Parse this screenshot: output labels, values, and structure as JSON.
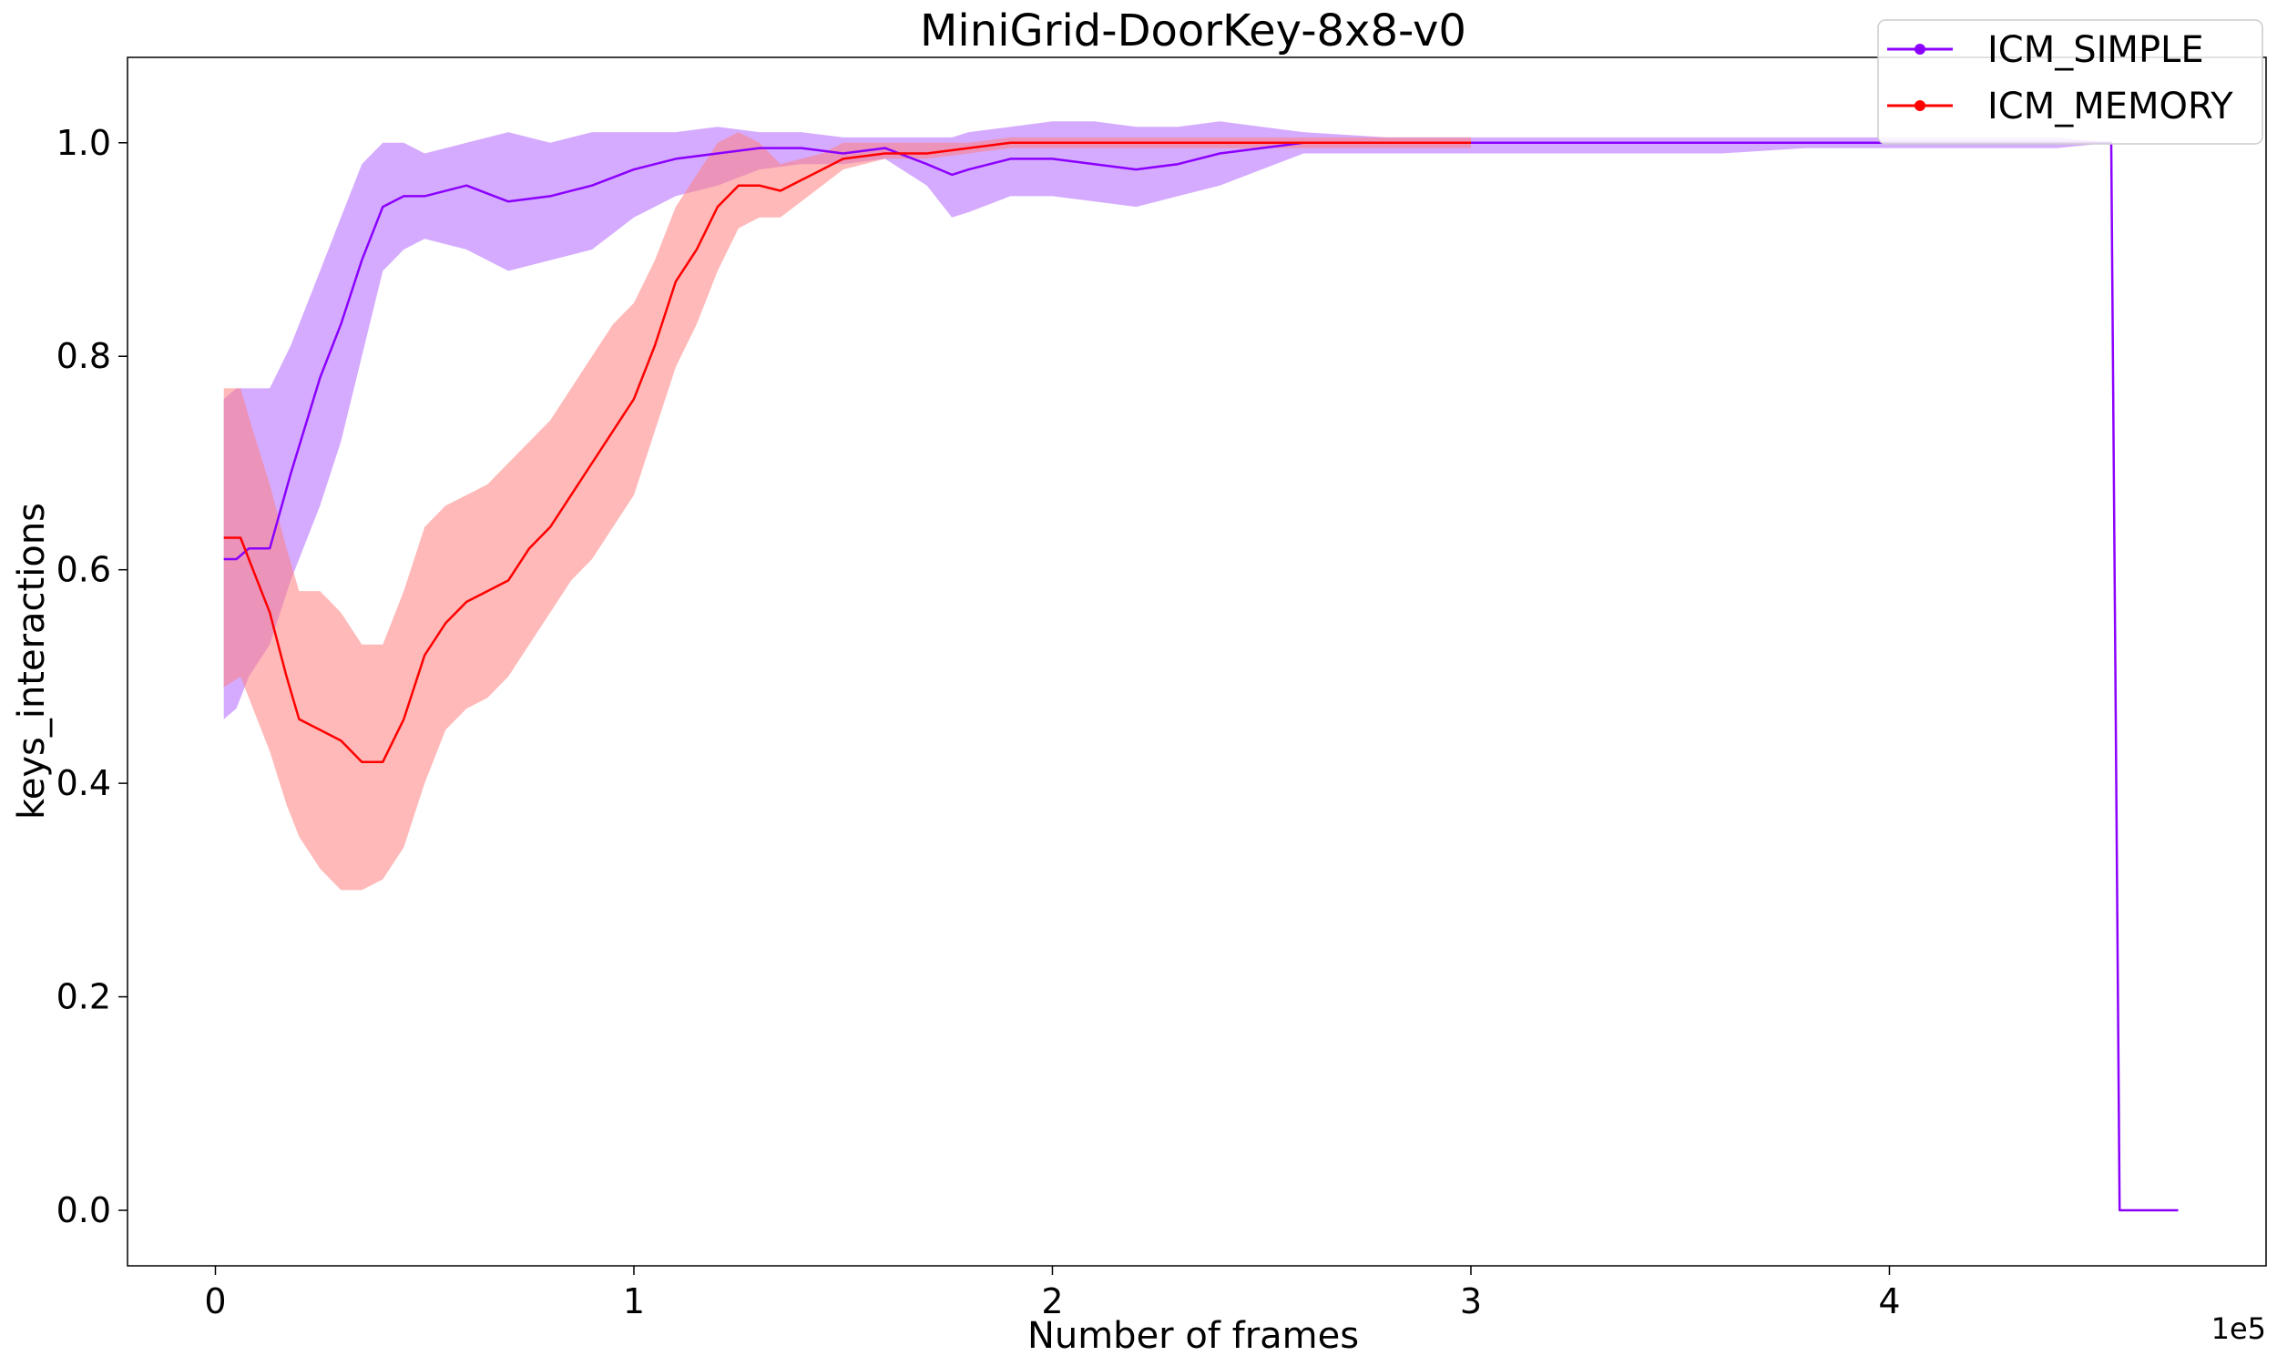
{
  "chart_data": {
    "type": "line",
    "title": "MiniGrid-DoorKey-8x8-v0",
    "xlabel": "Number of frames",
    "ylabel": "keys_interactions",
    "x_offset_label": "1e5",
    "xlim": [
      -0.21,
      4.9
    ],
    "ylim": [
      -0.052,
      1.08
    ],
    "x_ticks": [
      0,
      1,
      2,
      3,
      4
    ],
    "x_tick_labels": [
      "0",
      "1",
      "2",
      "3",
      "4"
    ],
    "y_ticks": [
      0.0,
      0.2,
      0.4,
      0.6,
      0.8,
      1.0
    ],
    "y_tick_labels": [
      "0.0",
      "0.2",
      "0.4",
      "0.6",
      "0.8",
      "1.0"
    ],
    "grid": false,
    "legend_position": "top-right",
    "series": [
      {
        "name": "ICM_SIMPLE",
        "color": "#8B00FF",
        "band_color": "#B266FF",
        "x": [
          0.02,
          0.05,
          0.08,
          0.13,
          0.18,
          0.25,
          0.3,
          0.35,
          0.4,
          0.45,
          0.5,
          0.6,
          0.7,
          0.8,
          0.9,
          1.0,
          1.1,
          1.2,
          1.3,
          1.4,
          1.5,
          1.6,
          1.7,
          1.76,
          1.8,
          1.9,
          2.0,
          2.1,
          2.2,
          2.3,
          2.4,
          2.5,
          2.6,
          2.8,
          3.0,
          3.2,
          3.4,
          3.6,
          3.8,
          4.0,
          4.2,
          4.4,
          4.53,
          4.55,
          4.69
        ],
        "y": [
          0.61,
          0.61,
          0.62,
          0.62,
          0.69,
          0.78,
          0.83,
          0.89,
          0.94,
          0.95,
          0.95,
          0.96,
          0.945,
          0.95,
          0.96,
          0.975,
          0.985,
          0.99,
          0.995,
          0.995,
          0.99,
          0.995,
          0.98,
          0.97,
          0.975,
          0.985,
          0.985,
          0.98,
          0.975,
          0.98,
          0.99,
          0.995,
          1.0,
          1.0,
          1.0,
          1.0,
          1.0,
          1.0,
          1.0,
          1.0,
          1.0,
          1.0,
          1.0,
          0.0,
          0.0
        ],
        "lower": [
          0.46,
          0.47,
          0.5,
          0.53,
          0.59,
          0.66,
          0.72,
          0.8,
          0.88,
          0.9,
          0.91,
          0.9,
          0.88,
          0.89,
          0.9,
          0.93,
          0.95,
          0.96,
          0.975,
          0.98,
          0.98,
          0.985,
          0.96,
          0.93,
          0.935,
          0.95,
          0.95,
          0.945,
          0.94,
          0.95,
          0.96,
          0.975,
          0.99,
          0.99,
          0.99,
          0.99,
          0.99,
          0.99,
          0.995,
          0.995,
          0.995,
          0.995,
          1.0,
          0.0,
          0.0
        ],
        "upper": [
          0.76,
          0.77,
          0.77,
          0.77,
          0.81,
          0.88,
          0.93,
          0.98,
          1.0,
          1.0,
          0.99,
          1.0,
          1.01,
          1.0,
          1.01,
          1.01,
          1.01,
          1.015,
          1.01,
          1.01,
          1.005,
          1.005,
          1.005,
          1.005,
          1.01,
          1.015,
          1.02,
          1.02,
          1.015,
          1.015,
          1.02,
          1.015,
          1.01,
          1.005,
          1.005,
          1.005,
          1.005,
          1.005,
          1.005,
          1.005,
          1.005,
          1.005,
          1.0,
          0.0,
          0.0
        ]
      },
      {
        "name": "ICM_MEMORY",
        "color": "#FF0000",
        "band_color": "#FF7F7F",
        "x": [
          0.02,
          0.06,
          0.09,
          0.13,
          0.17,
          0.2,
          0.25,
          0.3,
          0.35,
          0.4,
          0.45,
          0.5,
          0.55,
          0.6,
          0.65,
          0.7,
          0.75,
          0.8,
          0.85,
          0.9,
          0.95,
          1.0,
          1.05,
          1.1,
          1.15,
          1.2,
          1.25,
          1.3,
          1.35,
          1.4,
          1.45,
          1.5,
          1.6,
          1.7,
          1.8,
          1.9,
          2.0,
          2.2,
          2.4,
          2.6,
          3.0
        ],
        "y": [
          0.63,
          0.63,
          0.6,
          0.56,
          0.5,
          0.46,
          0.45,
          0.44,
          0.42,
          0.42,
          0.46,
          0.52,
          0.55,
          0.57,
          0.58,
          0.59,
          0.62,
          0.64,
          0.67,
          0.7,
          0.73,
          0.76,
          0.81,
          0.87,
          0.9,
          0.94,
          0.96,
          0.96,
          0.955,
          0.965,
          0.975,
          0.985,
          0.99,
          0.99,
          0.995,
          1.0,
          1.0,
          1.0,
          1.0,
          1.0,
          1.0
        ],
        "lower": [
          0.49,
          0.5,
          0.47,
          0.43,
          0.38,
          0.35,
          0.32,
          0.3,
          0.3,
          0.31,
          0.34,
          0.4,
          0.45,
          0.47,
          0.48,
          0.5,
          0.53,
          0.56,
          0.59,
          0.61,
          0.64,
          0.67,
          0.73,
          0.79,
          0.83,
          0.88,
          0.92,
          0.93,
          0.93,
          0.945,
          0.96,
          0.975,
          0.985,
          0.985,
          0.99,
          0.995,
          0.995,
          0.995,
          0.995,
          0.995,
          0.995
        ],
        "upper": [
          0.77,
          0.77,
          0.73,
          0.68,
          0.62,
          0.58,
          0.58,
          0.56,
          0.53,
          0.53,
          0.58,
          0.64,
          0.66,
          0.67,
          0.68,
          0.7,
          0.72,
          0.74,
          0.77,
          0.8,
          0.83,
          0.85,
          0.89,
          0.94,
          0.97,
          1.0,
          1.01,
          1.0,
          0.98,
          0.985,
          0.99,
          1.0,
          1.0,
          1.0,
          1.0,
          1.005,
          1.005,
          1.005,
          1.005,
          1.005,
          1.005
        ]
      }
    ]
  }
}
